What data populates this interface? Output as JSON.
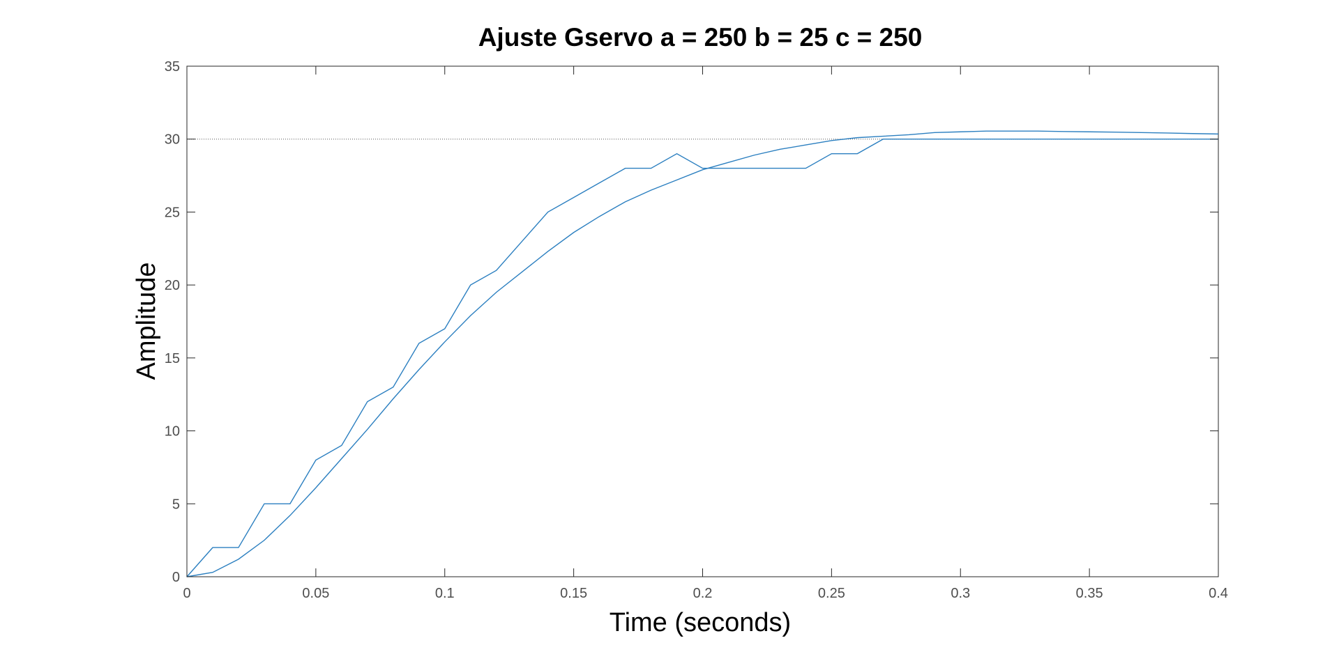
{
  "chart_data": {
    "type": "line",
    "title": "Ajuste Gservo a = 250  b = 25  c = 250",
    "xlabel": "Time (seconds)",
    "ylabel": "Amplitude",
    "xlim": [
      0,
      0.4
    ],
    "ylim": [
      0,
      35
    ],
    "x_ticks": [
      0,
      0.05,
      0.1,
      0.15,
      0.2,
      0.25,
      0.3,
      0.35,
      0.4
    ],
    "x_tick_labels": [
      "0",
      "0.05",
      "0.1",
      "0.15",
      "0.2",
      "0.25",
      "0.3",
      "0.35",
      "0.4"
    ],
    "y_ticks": [
      0,
      5,
      10,
      15,
      20,
      25,
      30,
      35
    ],
    "y_tick_labels": [
      "0",
      "5",
      "10",
      "15",
      "20",
      "25",
      "30",
      "35"
    ],
    "grid": false,
    "legend": "none",
    "reference_line": {
      "y": 30,
      "style": "dotted",
      "color": "#555555"
    },
    "series": [
      {
        "color": "#2b7fc0",
        "x": [
          0,
          0.01,
          0.02,
          0.03,
          0.04,
          0.05,
          0.06,
          0.07,
          0.08,
          0.09,
          0.1,
          0.11,
          0.12,
          0.13,
          0.14,
          0.15,
          0.16,
          0.17,
          0.18,
          0.19,
          0.2,
          0.21,
          0.22,
          0.23,
          0.24,
          0.25,
          0.26,
          0.27,
          0.28,
          0.29,
          0.3,
          0.31,
          0.32,
          0.33,
          0.34,
          0.35,
          0.36,
          0.37,
          0.38,
          0.39,
          0.4
        ],
        "y": [
          0,
          2,
          2,
          5,
          5,
          8,
          9,
          12,
          13,
          16,
          17,
          20,
          21,
          23,
          25,
          26,
          27,
          28,
          28,
          29,
          28,
          28,
          28,
          28,
          28,
          29,
          29,
          30,
          30,
          30,
          30,
          30,
          30,
          30,
          30,
          30,
          30,
          30,
          30,
          30,
          30
        ]
      },
      {
        "color": "#2b7fc0",
        "x": [
          0,
          0.01,
          0.02,
          0.03,
          0.04,
          0.05,
          0.06,
          0.07,
          0.08,
          0.09,
          0.1,
          0.11,
          0.12,
          0.13,
          0.14,
          0.15,
          0.16,
          0.17,
          0.18,
          0.19,
          0.2,
          0.21,
          0.22,
          0.23,
          0.24,
          0.25,
          0.26,
          0.27,
          0.28,
          0.29,
          0.3,
          0.31,
          0.32,
          0.33,
          0.34,
          0.35,
          0.36,
          0.37,
          0.38,
          0.39,
          0.4
        ],
        "y": [
          0,
          0.3,
          1.2,
          2.5,
          4.2,
          6.1,
          8.1,
          10.1,
          12.2,
          14.2,
          16.1,
          17.9,
          19.5,
          20.9,
          22.3,
          23.6,
          24.7,
          25.7,
          26.5,
          27.2,
          27.9,
          28.4,
          28.9,
          29.3,
          29.6,
          29.9,
          30.1,
          30.2,
          30.3,
          30.45,
          30.5,
          30.55,
          30.55,
          30.55,
          30.52,
          30.5,
          30.48,
          30.45,
          30.42,
          30.38,
          30.35
        ]
      }
    ]
  }
}
